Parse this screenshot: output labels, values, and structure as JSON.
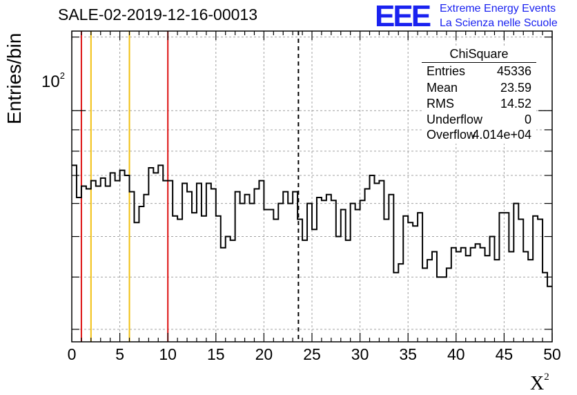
{
  "title": "SALE-02-2019-12-16-00013",
  "logo": {
    "text": "EEE",
    "line1": "Extreme Energy Events",
    "line2": "La Scienza nelle Scuole",
    "color": "#1a22f0"
  },
  "stats": {
    "name": "ChiSquare",
    "rows": [
      {
        "key": "Entries",
        "value": "45336"
      },
      {
        "key": "Mean",
        "value": "23.59"
      },
      {
        "key": "RMS",
        "value": "14.52"
      },
      {
        "key": "Underflow",
        "value": "0"
      },
      {
        "key": "Overflow",
        "value": "4.014e+04"
      }
    ]
  },
  "chart_data": {
    "type": "histogram",
    "title": "SALE-02-2019-12-16-00013",
    "xlabel": "X",
    "xlabel_sup": "2",
    "ylabel": "Entries/bin",
    "yscale": "log",
    "xlim": [
      0,
      50
    ],
    "ylim": [
      28,
      155
    ],
    "ytick_base": "10",
    "ytick_exp": "2",
    "xticks": [
      "0",
      "5",
      "10",
      "15",
      "20",
      "25",
      "30",
      "35",
      "40",
      "45",
      "50"
    ],
    "bin_width": 0.5,
    "counts": [
      74,
      62,
      66,
      65,
      68,
      66,
      69,
      66,
      71,
      68,
      72,
      70,
      64,
      54,
      59,
      63,
      73,
      71,
      74,
      68,
      68,
      56,
      55,
      67,
      64,
      57,
      67,
      56,
      67,
      65,
      56,
      47,
      50,
      49,
      64,
      60,
      63,
      60,
      65,
      68,
      58,
      58,
      55,
      60,
      64,
      60,
      64,
      55,
      49,
      60,
      52,
      62,
      61,
      63,
      61,
      50,
      58,
      49,
      60,
      58,
      61,
      65,
      70,
      67,
      68,
      55,
      63,
      41,
      43,
      56,
      54,
      53,
      57,
      42,
      44,
      46,
      40,
      40,
      42,
      47,
      46,
      47,
      45,
      47,
      48,
      47,
      45,
      50,
      44,
      57,
      57,
      46,
      60,
      55,
      46,
      44,
      56,
      55,
      41,
      38
    ],
    "vertical_lines": [
      {
        "x": 1,
        "color": "#dd1111",
        "style": "solid"
      },
      {
        "x": 2,
        "color": "#f2c011",
        "style": "solid"
      },
      {
        "x": 6,
        "color": "#f2c011",
        "style": "solid"
      },
      {
        "x": 10,
        "color": "#dd1111",
        "style": "solid"
      },
      {
        "x": 23.59,
        "color": "#000000",
        "style": "dashed"
      }
    ],
    "grid": true
  }
}
